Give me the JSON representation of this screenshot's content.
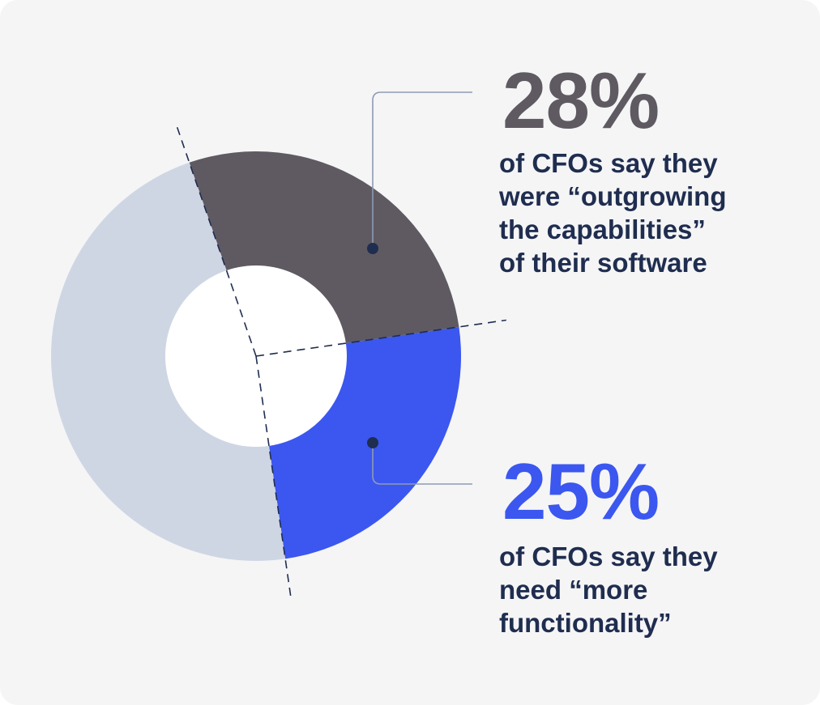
{
  "chart_data": {
    "type": "pie",
    "variant": "donut",
    "slices": [
      {
        "label": "of CFOs say they were “outgrowing the capabilities” of their software",
        "value": 28,
        "color": "#5f5a62"
      },
      {
        "label": "of CFOs say they need “more functionality”",
        "value": 25,
        "color": "#3b57f0"
      },
      {
        "label": "",
        "value": 47,
        "color": "#cfd6e3"
      }
    ],
    "start_angle_deg": -19,
    "guide_color": "#1f2d4f"
  },
  "stats": [
    {
      "value": "28%",
      "lines": [
        "of CFOs say they",
        "were “outgrowing",
        "the capabilities”",
        "of their software"
      ],
      "color": "#5f5a62"
    },
    {
      "value": "25%",
      "lines": [
        "of CFOs say they",
        "need “more",
        "functionality”"
      ],
      "color": "#3b57f0"
    }
  ],
  "colors": {
    "background": "#f5f5f6",
    "text_dark": "#1f2d4f",
    "connector": "#8e9bb3"
  }
}
